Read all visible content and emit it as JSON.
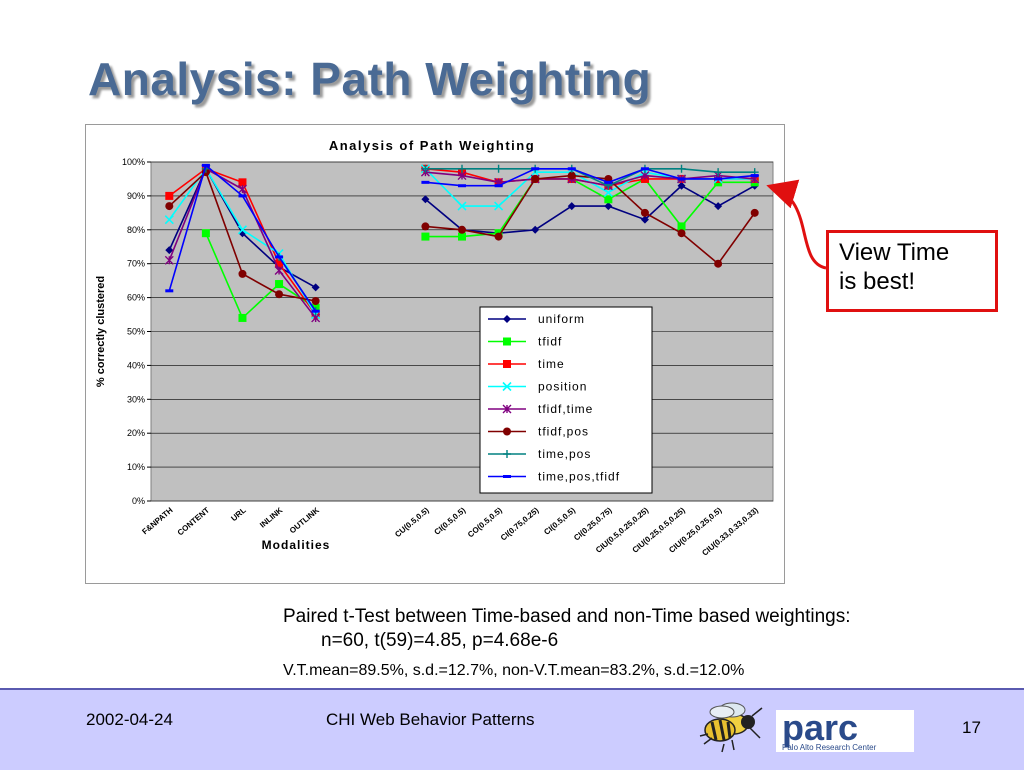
{
  "slide": {
    "title": "Analysis: Path Weighting",
    "callout": [
      "View Time",
      "is best!"
    ],
    "stats": [
      "Paired t-Test between Time-based and non-Time based weightings:",
      "n=60, t(59)=4.85, p=4.68e-6",
      "V.T.mean=89.5%, s.d.=12.7%, non-V.T.mean=83.2%, s.d.=12.0%"
    ],
    "footer": {
      "date": "2002-04-24",
      "title": "CHI Web Behavior Patterns",
      "page": "17"
    },
    "logo": {
      "text": "parc",
      "subtext": "Palo Alto Research Center"
    }
  },
  "chart_data": {
    "type": "line",
    "title": "Analysis of Path Weighting",
    "xlabel": "Modalities",
    "ylabel": "% correctly clustered",
    "ylim": [
      0,
      100
    ],
    "yticks": [
      "0%",
      "10%",
      "20%",
      "30%",
      "40%",
      "50%",
      "60%",
      "70%",
      "80%",
      "90%",
      "100%"
    ],
    "grid": true,
    "legend_position": "center-right",
    "colors": {
      "plot_bg": "#c0c0c0",
      "uniform": "#000080",
      "tfidf": "#00ff00",
      "time": "#ff0000",
      "position": "#00ffff",
      "tfidf,time": "#800080",
      "tfidf,pos": "#800000",
      "time,pos": "#008080",
      "time,pos,tfidf": "#0000ff"
    },
    "categories": [
      "F&NPATH",
      "CONTENT",
      "URL",
      "INLINK",
      "OUTLINK",
      "",
      "",
      "CU(0.5,0.5)",
      "CI(0.5,0.5)",
      "CO(0.5,0.5)",
      "CI(0.75,0.25)",
      "CI(0.5,0.5)",
      "CI(0.25,0.75)",
      "CIU(0.5,0.25,0.25)",
      "CIU(0.25,0.5,0.25)",
      "CIU(0.25,0.25,0.5)",
      "CIU(0.33,0.33,0.33)"
    ],
    "series": [
      {
        "name": "uniform",
        "marker": "diamond",
        "values": [
          74,
          98,
          79,
          69,
          63,
          null,
          null,
          89,
          80,
          79,
          80,
          87,
          87,
          83,
          93,
          87,
          93
        ]
      },
      {
        "name": "tfidf",
        "marker": "square",
        "values": [
          null,
          79,
          54,
          64,
          57,
          null,
          null,
          78,
          78,
          79,
          95,
          95,
          89,
          95,
          81,
          94,
          94
        ]
      },
      {
        "name": "time",
        "marker": "square",
        "values": [
          90,
          98,
          94,
          70,
          55,
          null,
          null,
          98,
          97,
          94,
          95,
          95,
          93,
          95,
          95,
          95,
          95
        ]
      },
      {
        "name": "position",
        "marker": "x",
        "values": [
          83,
          98,
          80,
          73,
          55,
          null,
          null,
          98,
          87,
          87,
          97,
          97,
          91,
          97,
          95,
          95,
          95
        ]
      },
      {
        "name": "tfidf,time",
        "marker": "star",
        "values": [
          71,
          98,
          92,
          68,
          54,
          null,
          null,
          97,
          96,
          94,
          95,
          95,
          93,
          96,
          95,
          96,
          95
        ]
      },
      {
        "name": "tfidf,pos",
        "marker": "circle",
        "values": [
          87,
          97,
          67,
          61,
          59,
          null,
          null,
          81,
          80,
          78,
          95,
          96,
          95,
          85,
          79,
          70,
          85
        ]
      },
      {
        "name": "time,pos",
        "marker": "plus",
        "values": [
          null,
          98,
          null,
          72,
          56,
          null,
          null,
          98,
          98,
          98,
          98,
          98,
          93,
          98,
          98,
          97,
          97
        ]
      },
      {
        "name": "time,pos,tfidf",
        "marker": "dash",
        "values": [
          62,
          99,
          90,
          72,
          56,
          null,
          null,
          94,
          93,
          93,
          98,
          98,
          94,
          98,
          95,
          95,
          96
        ]
      }
    ]
  }
}
